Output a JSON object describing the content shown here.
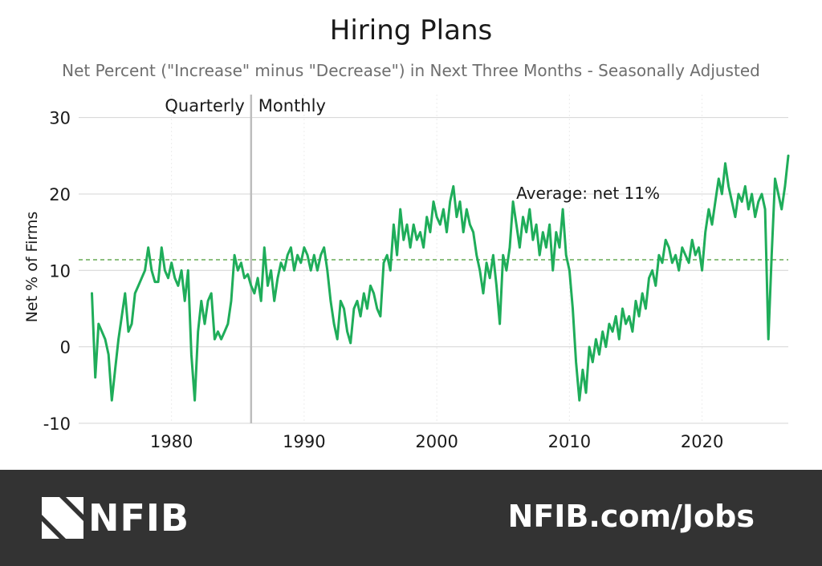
{
  "chart_data": {
    "type": "line",
    "title": "Hiring Plans",
    "subtitle": "Net Percent (\"Increase\" minus \"Decrease\") in Next Three Months - Seasonally Adjusted",
    "ylabel": "Net % of Firms",
    "xlabel": "",
    "ylim": [
      -10,
      33
    ],
    "xlim": [
      1973,
      2026.5
    ],
    "y_ticks": [
      -10,
      0,
      10,
      20,
      30
    ],
    "x_ticks": [
      1980,
      1990,
      2000,
      2010,
      2020
    ],
    "grid": "horizontal",
    "series_color": "#1fad5a",
    "divider": {
      "x": 1986,
      "left_label": "Quarterly",
      "right_label": "Monthly"
    },
    "average": {
      "value": 11.4,
      "label": "Average: net 11%"
    },
    "series": [
      {
        "points": [
          [
            1974.0,
            7
          ],
          [
            1974.25,
            -4
          ],
          [
            1974.5,
            3
          ],
          [
            1975.0,
            1
          ],
          [
            1975.25,
            -1
          ],
          [
            1975.5,
            -7
          ],
          [
            1975.75,
            -3
          ],
          [
            1976.0,
            1
          ],
          [
            1976.25,
            4
          ],
          [
            1976.5,
            7
          ],
          [
            1976.75,
            2
          ],
          [
            1977.0,
            3
          ],
          [
            1977.25,
            7
          ],
          [
            1977.5,
            8
          ],
          [
            1977.75,
            9
          ],
          [
            1978.0,
            10
          ],
          [
            1978.25,
            13
          ],
          [
            1978.5,
            10
          ],
          [
            1978.75,
            8.5
          ],
          [
            1979.0,
            8.5
          ],
          [
            1979.25,
            13
          ],
          [
            1979.5,
            10
          ],
          [
            1979.75,
            9
          ],
          [
            1980.0,
            11
          ],
          [
            1980.25,
            9
          ],
          [
            1980.5,
            8
          ],
          [
            1980.75,
            10
          ],
          [
            1981.0,
            6
          ],
          [
            1981.25,
            10
          ],
          [
            1981.5,
            -1
          ],
          [
            1981.75,
            -7
          ],
          [
            1982.0,
            2
          ],
          [
            1982.25,
            6
          ],
          [
            1982.5,
            3
          ],
          [
            1982.75,
            6
          ],
          [
            1983.0,
            7
          ],
          [
            1983.25,
            1
          ],
          [
            1983.5,
            2
          ],
          [
            1983.75,
            1
          ],
          [
            1984.0,
            2
          ],
          [
            1984.25,
            3
          ],
          [
            1984.5,
            6
          ],
          [
            1984.75,
            12
          ],
          [
            1985.0,
            10
          ],
          [
            1985.25,
            11
          ],
          [
            1985.5,
            9
          ],
          [
            1985.75,
            9.5
          ],
          [
            1986.0,
            8
          ],
          [
            1986.25,
            7
          ],
          [
            1986.5,
            9
          ],
          [
            1986.75,
            6
          ],
          [
            1987.0,
            13
          ],
          [
            1987.25,
            8
          ],
          [
            1987.5,
            10
          ],
          [
            1987.75,
            6
          ],
          [
            1988.0,
            9
          ],
          [
            1988.25,
            11
          ],
          [
            1988.5,
            10
          ],
          [
            1988.75,
            12
          ],
          [
            1989.0,
            13
          ],
          [
            1989.25,
            10
          ],
          [
            1989.5,
            12
          ],
          [
            1989.75,
            11
          ],
          [
            1990.0,
            13
          ],
          [
            1990.25,
            12
          ],
          [
            1990.5,
            10
          ],
          [
            1990.75,
            12
          ],
          [
            1991.0,
            10
          ],
          [
            1991.25,
            12
          ],
          [
            1991.5,
            13
          ],
          [
            1991.75,
            10
          ],
          [
            1992.0,
            6
          ],
          [
            1992.25,
            3
          ],
          [
            1992.5,
            1
          ],
          [
            1992.75,
            6
          ],
          [
            1993.0,
            5
          ],
          [
            1993.25,
            2
          ],
          [
            1993.5,
            0.5
          ],
          [
            1993.75,
            5
          ],
          [
            1994.0,
            6
          ],
          [
            1994.25,
            4
          ],
          [
            1994.5,
            7
          ],
          [
            1994.75,
            5
          ],
          [
            1995.0,
            8
          ],
          [
            1995.25,
            7
          ],
          [
            1995.5,
            5
          ],
          [
            1995.75,
            4
          ],
          [
            1996.0,
            11
          ],
          [
            1996.25,
            12
          ],
          [
            1996.5,
            10
          ],
          [
            1996.75,
            16
          ],
          [
            1997.0,
            12
          ],
          [
            1997.25,
            18
          ],
          [
            1997.5,
            14
          ],
          [
            1997.75,
            16
          ],
          [
            1998.0,
            13
          ],
          [
            1998.25,
            16
          ],
          [
            1998.5,
            14
          ],
          [
            1998.75,
            15
          ],
          [
            1999.0,
            13
          ],
          [
            1999.25,
            17
          ],
          [
            1999.5,
            15
          ],
          [
            1999.75,
            19
          ],
          [
            2000.0,
            17
          ],
          [
            2000.25,
            16
          ],
          [
            2000.5,
            18
          ],
          [
            2000.75,
            15
          ],
          [
            2001.0,
            19
          ],
          [
            2001.25,
            21
          ],
          [
            2001.5,
            17
          ],
          [
            2001.75,
            19
          ],
          [
            2002.0,
            15
          ],
          [
            2002.25,
            18
          ],
          [
            2002.5,
            16
          ],
          [
            2002.75,
            15
          ],
          [
            2003.0,
            12
          ],
          [
            2003.25,
            10
          ],
          [
            2003.5,
            7
          ],
          [
            2003.75,
            11
          ],
          [
            2004.0,
            9
          ],
          [
            2004.25,
            12
          ],
          [
            2004.5,
            8
          ],
          [
            2004.75,
            3
          ],
          [
            2005.0,
            12
          ],
          [
            2005.25,
            10
          ],
          [
            2005.5,
            13
          ],
          [
            2005.75,
            19
          ],
          [
            2006.0,
            16
          ],
          [
            2006.25,
            13
          ],
          [
            2006.5,
            17
          ],
          [
            2006.75,
            15
          ],
          [
            2007.0,
            18
          ],
          [
            2007.25,
            14
          ],
          [
            2007.5,
            16
          ],
          [
            2007.75,
            12
          ],
          [
            2008.0,
            15
          ],
          [
            2008.25,
            13
          ],
          [
            2008.5,
            16
          ],
          [
            2008.75,
            10
          ],
          [
            2009.0,
            15
          ],
          [
            2009.25,
            13
          ],
          [
            2009.5,
            18
          ],
          [
            2009.75,
            12
          ],
          [
            2010.0,
            10
          ],
          [
            2010.25,
            5
          ],
          [
            2010.5,
            -2
          ],
          [
            2010.75,
            -7
          ],
          [
            2011.0,
            -3
          ],
          [
            2011.25,
            -6
          ],
          [
            2011.5,
            0
          ],
          [
            2011.75,
            -2
          ],
          [
            2012.0,
            1
          ],
          [
            2012.25,
            -1
          ],
          [
            2012.5,
            2
          ],
          [
            2012.75,
            0
          ],
          [
            2013.0,
            3
          ],
          [
            2013.25,
            2
          ],
          [
            2013.5,
            4
          ],
          [
            2013.75,
            1
          ],
          [
            2014.0,
            5
          ],
          [
            2014.25,
            3
          ],
          [
            2014.5,
            4
          ],
          [
            2014.75,
            2
          ],
          [
            2015.0,
            6
          ],
          [
            2015.25,
            4
          ],
          [
            2015.5,
            7
          ],
          [
            2015.75,
            5
          ],
          [
            2016.0,
            9
          ],
          [
            2016.25,
            10
          ],
          [
            2016.5,
            8
          ],
          [
            2016.75,
            12
          ],
          [
            2017.0,
            11
          ],
          [
            2017.25,
            14
          ],
          [
            2017.5,
            13
          ],
          [
            2017.75,
            11
          ],
          [
            2018.0,
            12
          ],
          [
            2018.25,
            10
          ],
          [
            2018.5,
            13
          ],
          [
            2018.75,
            12
          ],
          [
            2019.0,
            11
          ],
          [
            2019.25,
            14
          ],
          [
            2019.5,
            12
          ],
          [
            2019.75,
            13
          ],
          [
            2020.0,
            10
          ],
          [
            2020.25,
            15
          ],
          [
            2020.5,
            18
          ],
          [
            2020.75,
            16
          ],
          [
            2021.0,
            19
          ],
          [
            2021.25,
            22
          ],
          [
            2021.5,
            20
          ],
          [
            2021.75,
            24
          ],
          [
            2022.0,
            21
          ],
          [
            2022.25,
            19
          ],
          [
            2022.5,
            17
          ],
          [
            2022.75,
            20
          ],
          [
            2023.0,
            19
          ],
          [
            2023.25,
            21
          ],
          [
            2023.5,
            18
          ],
          [
            2023.75,
            20
          ],
          [
            2024.0,
            17
          ],
          [
            2024.25,
            19
          ],
          [
            2024.5,
            20
          ],
          [
            2024.75,
            18
          ],
          [
            2025.0,
            1
          ],
          [
            2025.25,
            12
          ],
          [
            2025.5,
            22
          ],
          [
            2025.75,
            20
          ],
          [
            2026.0,
            18
          ],
          [
            2026.25,
            21
          ],
          [
            2026.5,
            25
          ]
        ]
      }
    ]
  },
  "footer": {
    "logo_text": "NFIB",
    "url": "NFIB.com/Jobs"
  }
}
